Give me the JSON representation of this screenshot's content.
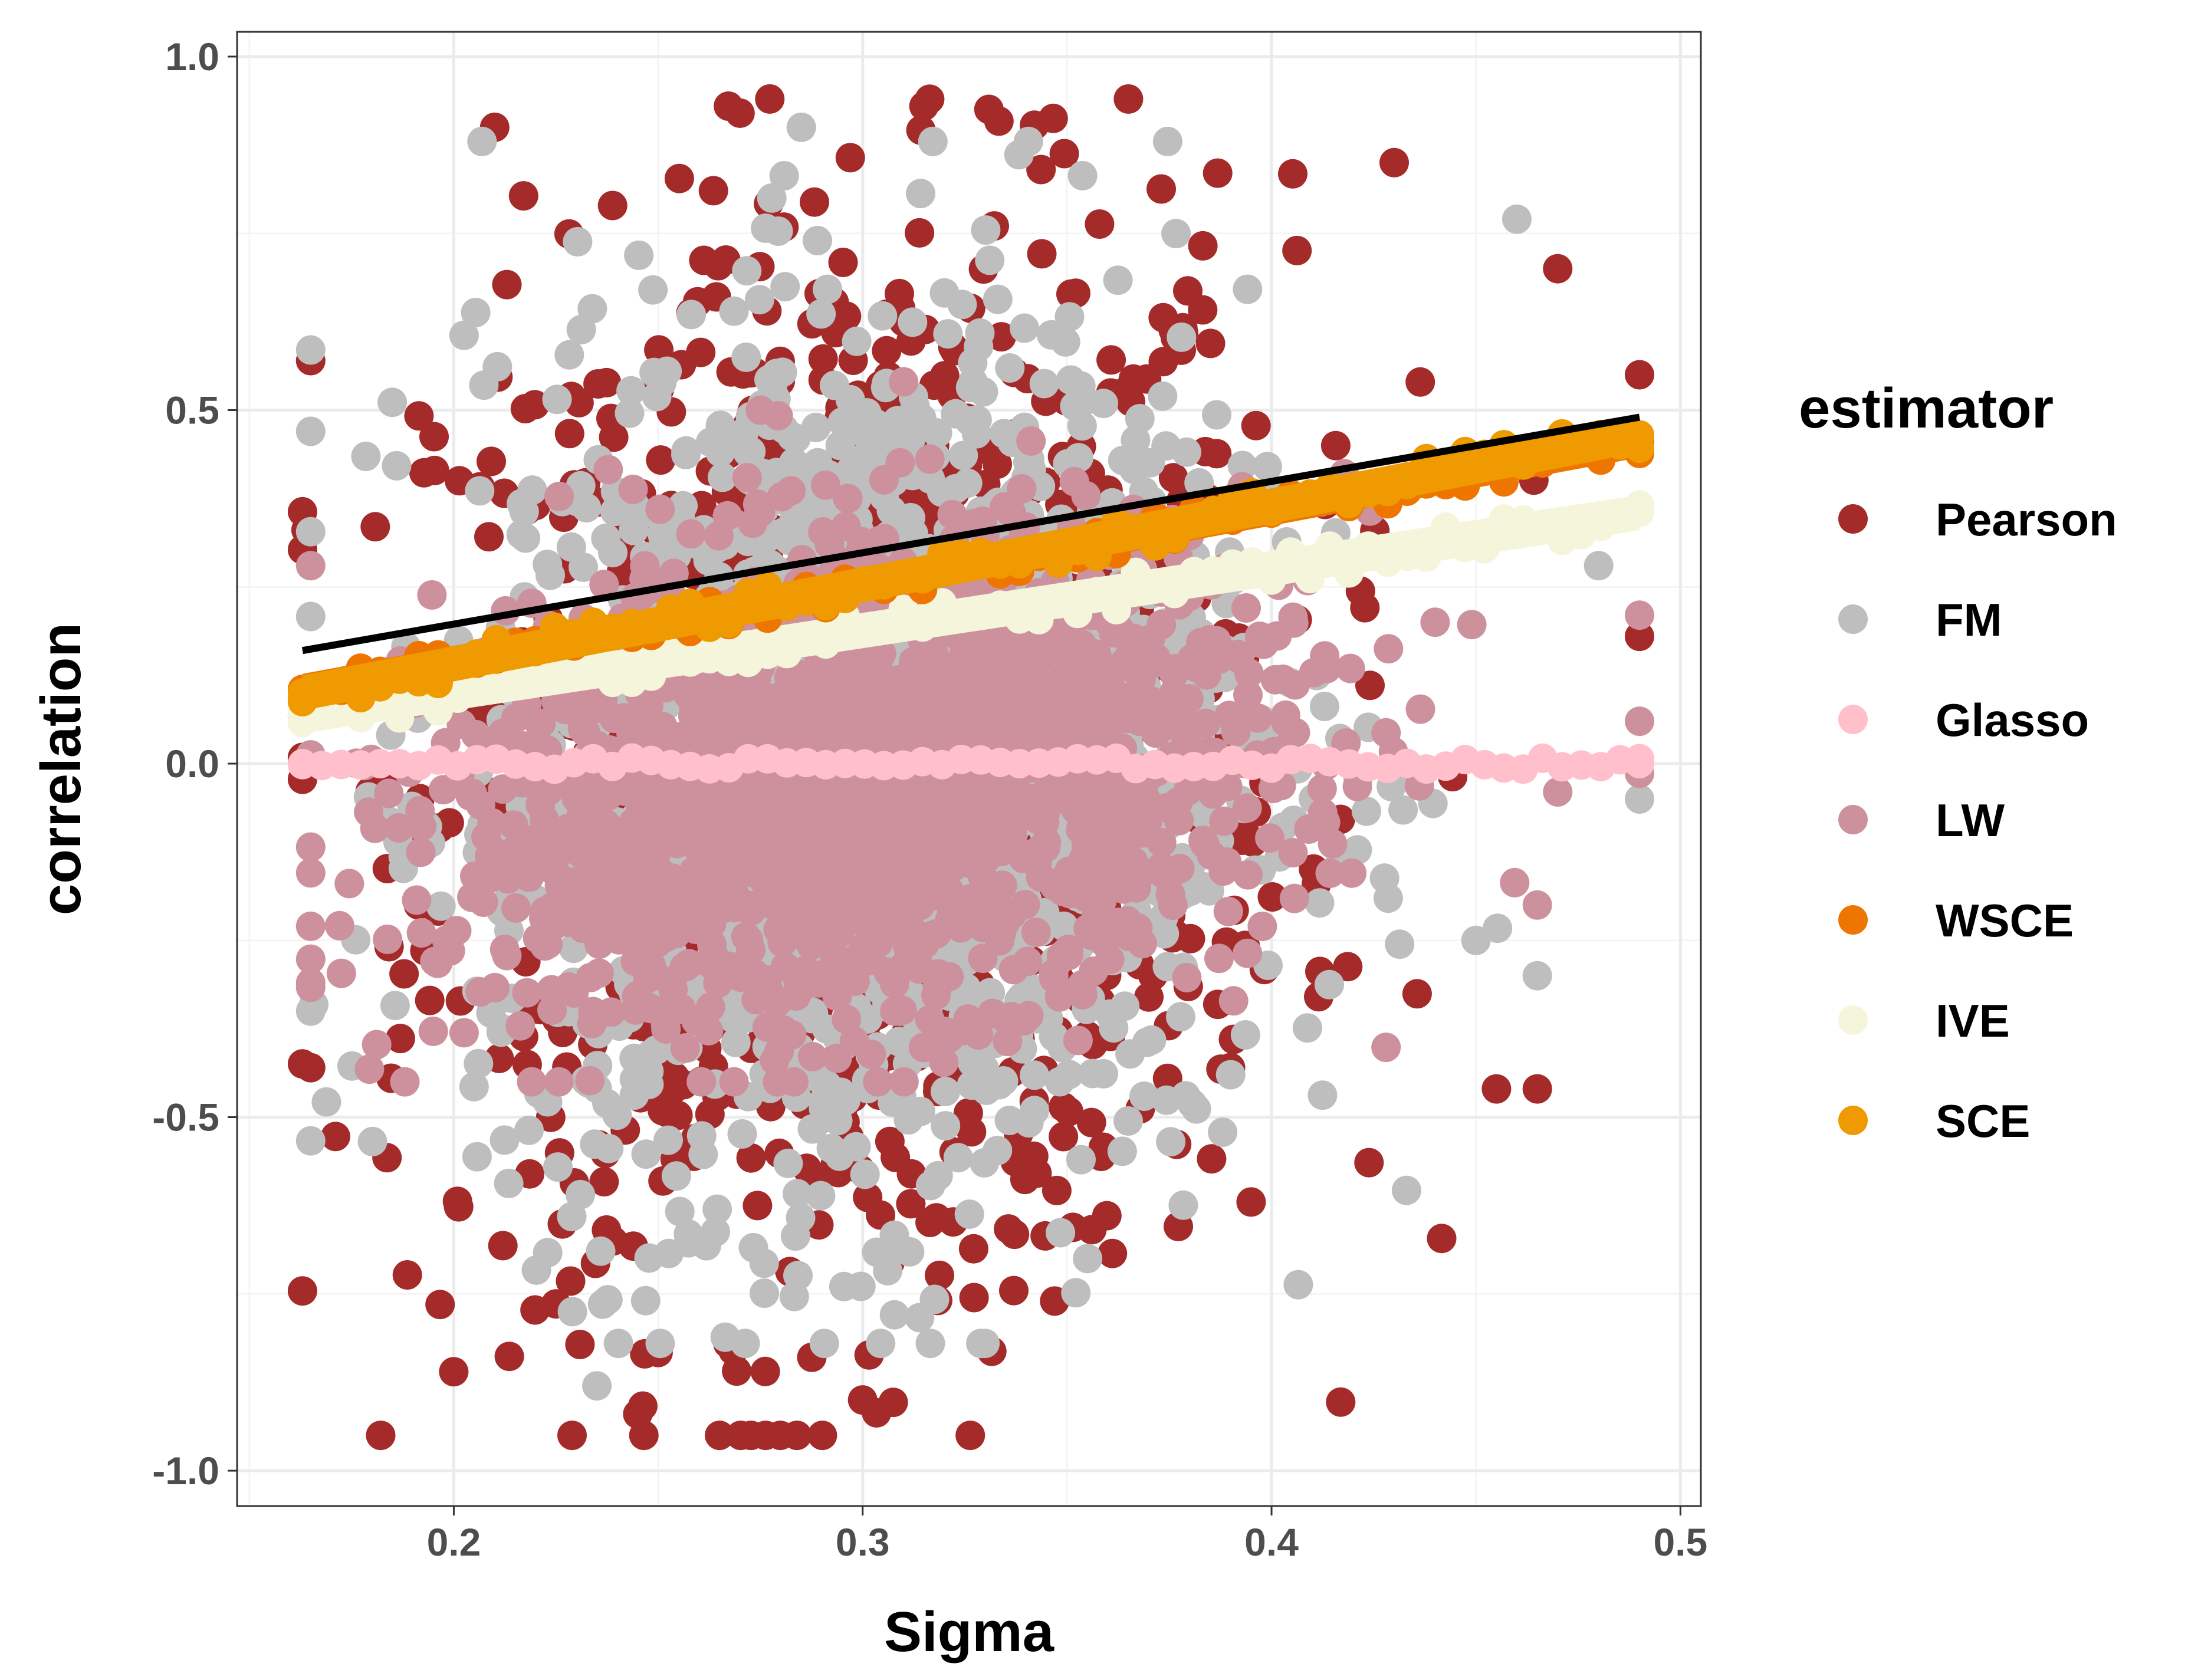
{
  "chart_data": {
    "type": "scatter",
    "xlabel": "Sigma",
    "ylabel": "correlation",
    "xlim": [
      0.147,
      0.505
    ],
    "ylim": [
      -1.05,
      1.035
    ],
    "x_ticks": [
      0.2,
      0.3,
      0.4,
      0.5
    ],
    "x_tick_labels": [
      "0.2",
      "0.3",
      "0.4",
      "0.5"
    ],
    "y_ticks": [
      -1.0,
      -0.5,
      0.0,
      0.5,
      1.0
    ],
    "y_tick_labels": [
      "-1.0",
      "-0.5",
      "0.0",
      "0.5",
      "1.0"
    ],
    "grid": true,
    "legend": {
      "title": "estimator",
      "position": "right",
      "entries": [
        {
          "label": "Pearson",
          "color": "#A52A2A"
        },
        {
          "label": "FM",
          "color": "#BEBEBE"
        },
        {
          "label": "Glasso",
          "color": "#FFC0CB"
        },
        {
          "label": "LW",
          "color": "#CD919E"
        },
        {
          "label": "WSCE",
          "color": "#EE7600"
        },
        {
          "label": "IVE",
          "color": "#F5F5DC"
        },
        {
          "label": "SCE",
          "color": "#EE9A00"
        }
      ]
    },
    "series": [
      {
        "name": "Pearson",
        "color": "#A52A2A",
        "kind": "cloud",
        "points": [
          [
            0.27,
            0.92
          ],
          [
            0.315,
            0.93
          ],
          [
            0.365,
            0.94
          ],
          [
            0.455,
            -0.46
          ],
          [
            0.465,
            -0.46
          ],
          [
            0.265,
            -0.95
          ],
          [
            0.245,
            -0.92
          ],
          [
            0.3,
            -0.9
          ],
          [
            0.395,
            -0.62
          ],
          [
            0.49,
            0.55
          ],
          [
            0.49,
            0.18
          ],
          [
            0.475,
            0.45
          ],
          [
            0.47,
            0.7
          ],
          [
            0.165,
            0.57
          ],
          [
            0.165,
            -0.43
          ],
          [
            0.2,
            -0.86
          ],
          [
            0.43,
            0.85
          ],
          [
            0.21,
            0.9
          ]
        ]
      },
      {
        "name": "FM",
        "color": "#BEBEBE",
        "kind": "cloud",
        "points": [
          [
            0.285,
            0.9
          ],
          [
            0.235,
            -0.88
          ],
          [
            0.46,
            0.77
          ],
          [
            0.465,
            -0.3
          ],
          [
            0.49,
            -0.05
          ],
          [
            0.45,
            -0.25
          ],
          [
            0.165,
            0.47
          ],
          [
            0.165,
            -0.35
          ],
          [
            0.48,
            0.28
          ],
          [
            0.355,
            -0.7
          ],
          [
            0.39,
            -0.44
          ]
        ]
      },
      {
        "name": "Glasso",
        "color": "#FFC0CB",
        "kind": "band",
        "x": [
          0.163,
          0.49
        ],
        "y": [
          0.0,
          0.0
        ],
        "halfwidth": 0.008
      },
      {
        "name": "LW",
        "color": "#CD919E",
        "kind": "cloud",
        "points": [
          [
            0.31,
            0.54
          ],
          [
            0.275,
            0.5
          ],
          [
            0.49,
            0.21
          ],
          [
            0.49,
            0.06
          ],
          [
            0.165,
            -0.23
          ],
          [
            0.165,
            0.28
          ],
          [
            0.465,
            -0.2
          ],
          [
            0.47,
            -0.04
          ],
          [
            0.44,
            0.2
          ]
        ]
      },
      {
        "name": "WSCE",
        "color": "#EE7600",
        "kind": "band",
        "x": [
          0.163,
          0.49
        ],
        "y": [
          0.105,
          0.455
        ],
        "halfwidth": 0.022
      },
      {
        "name": "IVE",
        "color": "#F5F5DC",
        "kind": "band",
        "x": [
          0.163,
          0.49
        ],
        "y": [
          0.068,
          0.355
        ],
        "halfwidth": 0.025
      },
      {
        "name": "SCE",
        "color": "#EE9A00",
        "kind": "band",
        "x": [
          0.163,
          0.49
        ],
        "y": [
          0.1,
          0.465
        ],
        "halfwidth": 0.025
      }
    ],
    "fit_line": {
      "color": "#000000",
      "x": [
        0.163,
        0.49
      ],
      "y": [
        0.16,
        0.49
      ]
    }
  }
}
